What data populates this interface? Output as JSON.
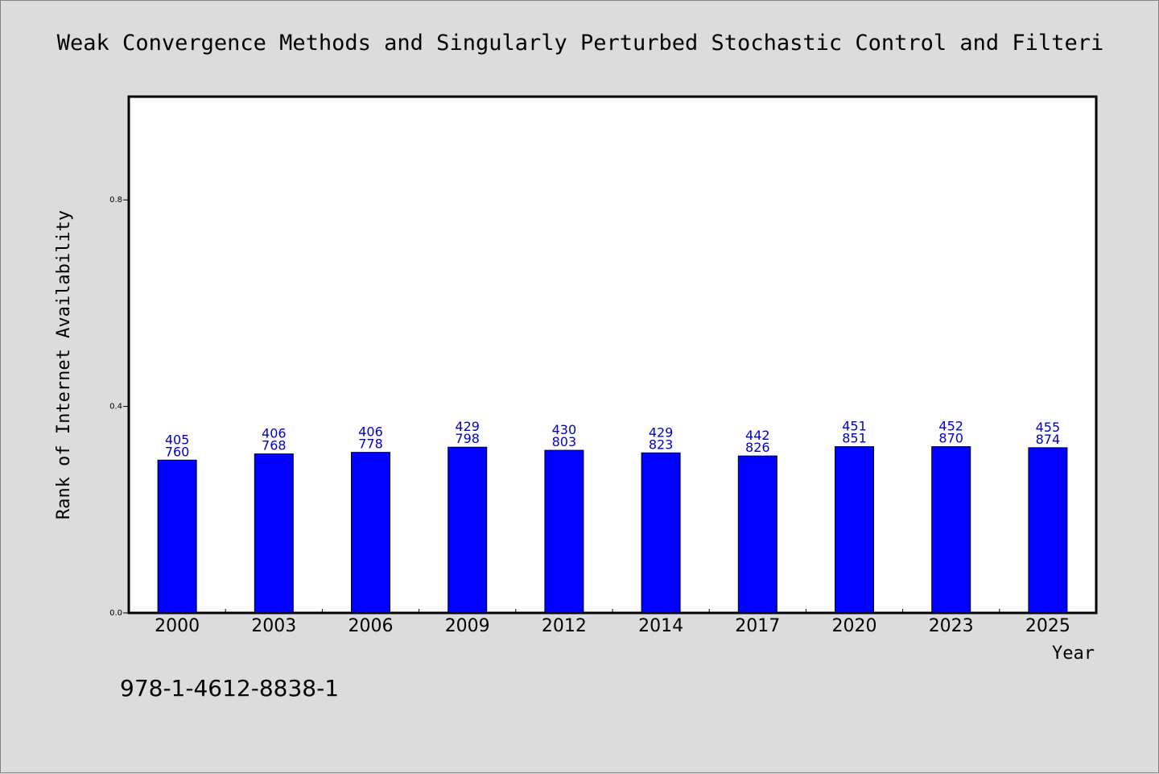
{
  "chart_data": {
    "type": "bar",
    "title": "Weak Convergence Methods and Singularly Perturbed Stochastic Control and Filteri",
    "xlabel": "Year",
    "ylabel": "Rank of Internet Availability",
    "categories": [
      "2000",
      "2003",
      "2006",
      "2009",
      "2012",
      "2014",
      "2017",
      "2020",
      "2023",
      "2025"
    ],
    "values": [
      0.296,
      0.308,
      0.311,
      0.321,
      0.315,
      0.31,
      0.304,
      0.322,
      0.322,
      0.32
    ],
    "labels_top": [
      "405",
      "406",
      "406",
      "429",
      "430",
      "429",
      "442",
      "451",
      "452",
      "455"
    ],
    "labels_bottom": [
      "760",
      "768",
      "778",
      "798",
      "803",
      "823",
      "826",
      "851",
      "870",
      "874"
    ],
    "yticks": [
      0.0,
      0.4,
      0.8
    ],
    "ytick_labels": [
      "0.0",
      "0.4",
      "0.8"
    ],
    "ylim": [
      0.0,
      1.0
    ],
    "grid": false,
    "bar_color": "#0000ff",
    "label_color": "#0000cc"
  },
  "footnote": "978-1-4612-8838-1"
}
